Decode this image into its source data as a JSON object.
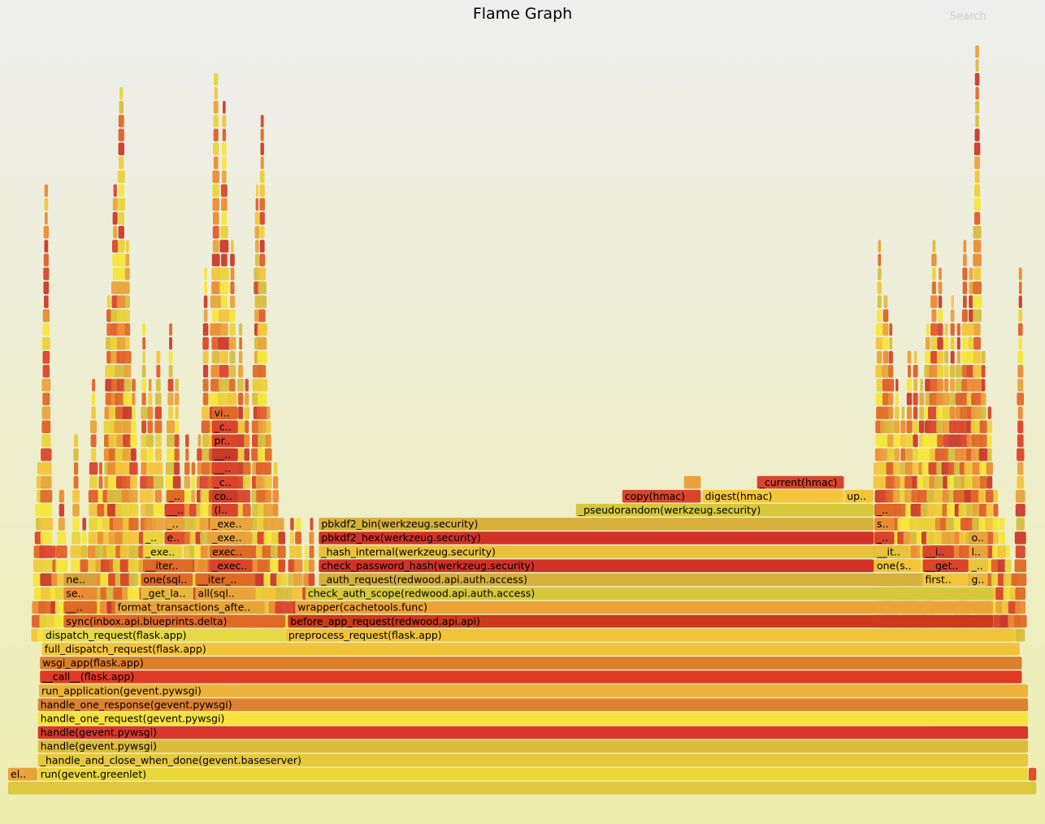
{
  "title": "Flame Graph",
  "search_label": "Search",
  "chart_data": {
    "type": "flamegraph",
    "title": "Flame Graph",
    "palette": [
      "#e8a33a",
      "#de6a25",
      "#d9442b",
      "#f1c53a",
      "#e9d23a",
      "#c93a2a",
      "#eb8b33",
      "#d6be3e",
      "#f5e53a",
      "#e05e2a"
    ],
    "frames": [
      {
        "name": "",
        "depth": 0,
        "start": 0.0,
        "end": 1.0,
        "color": "#ddc840"
      },
      {
        "name": "el..",
        "depth": 1,
        "start": 0.0,
        "end": 0.029,
        "color": "#e8a33a"
      },
      {
        "name": "run(gevent.greenlet)",
        "depth": 1,
        "start": 0.029,
        "end": 0.992,
        "color": "#e9d73a"
      },
      {
        "name": "",
        "depth": 1,
        "start": 0.992,
        "end": 1.0,
        "color": "#e0502b"
      },
      {
        "name": "_handle_and_close_when_done(gevent.baseserver)",
        "depth": 2,
        "start": 0.029,
        "end": 0.992,
        "color": "#e6c83c"
      },
      {
        "name": "handle(gevent.pywsgi)",
        "depth": 3,
        "start": 0.029,
        "end": 0.992,
        "color": "#dcbd3d"
      },
      {
        "name": "handle(gevent.pywsgi)",
        "depth": 4,
        "start": 0.029,
        "end": 0.992,
        "color": "#d8372a"
      },
      {
        "name": "handle_one_request(gevent.pywsgi)",
        "depth": 5,
        "start": 0.029,
        "end": 0.992,
        "color": "#f6e23a"
      },
      {
        "name": "handle_one_response(gevent.pywsgi)",
        "depth": 6,
        "start": 0.029,
        "end": 0.992,
        "color": "#dd8230"
      },
      {
        "name": "run_application(gevent.pywsgi)",
        "depth": 7,
        "start": 0.03,
        "end": 0.992,
        "color": "#edb23a"
      },
      {
        "name": "__call__(flask.app)",
        "depth": 8,
        "start": 0.031,
        "end": 0.986,
        "color": "#de3a25"
      },
      {
        "name": "wsgi_app(flask.app)",
        "depth": 9,
        "start": 0.031,
        "end": 0.986,
        "color": "#dc7e2a"
      },
      {
        "name": "full_dispatch_request(flask.app)",
        "depth": 10,
        "start": 0.033,
        "end": 0.984,
        "color": "#f2c43c"
      },
      {
        "name": "dispatch_request(flask.app)",
        "depth": 11,
        "start": 0.034,
        "end": 0.27,
        "color": "#e5da45"
      },
      {
        "name": "preprocess_request(flask.app)",
        "depth": 11,
        "start": 0.27,
        "end": 0.976,
        "color": "#f0c338"
      },
      {
        "name": "sync(inbox.api.blueprints.delta)",
        "depth": 12,
        "start": 0.054,
        "end": 0.27,
        "color": "#de6a25"
      },
      {
        "name": "before_app_request(redwood.api.api)",
        "depth": 12,
        "start": 0.272,
        "end": 0.958,
        "color": "#cb3a1a"
      },
      {
        "name": "__..",
        "depth": 13,
        "start": 0.054,
        "end": 0.087,
        "color": "#de6a25"
      },
      {
        "name": "format_transactions_afte..",
        "depth": 13,
        "start": 0.104,
        "end": 0.25,
        "color": "#e8a33a"
      },
      {
        "name": "wrapper(cachetools.func)",
        "depth": 13,
        "start": 0.279,
        "end": 0.958,
        "color": "#eba338"
      },
      {
        "name": "se..",
        "depth": 14,
        "start": 0.054,
        "end": 0.087,
        "color": "#eb8b33"
      },
      {
        "name": "_get_la..",
        "depth": 14,
        "start": 0.129,
        "end": 0.18,
        "color": "#e9b83a"
      },
      {
        "name": "all(sql..",
        "depth": 14,
        "start": 0.182,
        "end": 0.24,
        "color": "#e8a33a"
      },
      {
        "name": "check_auth_scope(redwood.api.auth.access)",
        "depth": 14,
        "start": 0.289,
        "end": 0.958,
        "color": "#d6c83a"
      },
      {
        "name": "ne..",
        "depth": 15,
        "start": 0.054,
        "end": 0.087,
        "color": "#d6a03a"
      },
      {
        "name": "one(sql..",
        "depth": 15,
        "start": 0.129,
        "end": 0.18,
        "color": "#de6a25"
      },
      {
        "name": "__iter_..",
        "depth": 15,
        "start": 0.182,
        "end": 0.24,
        "color": "#de6a25"
      },
      {
        "name": "_auth_request(redwood.api.auth.access)",
        "depth": 15,
        "start": 0.302,
        "end": 0.888,
        "color": "#d6b03a"
      },
      {
        "name": "first..",
        "depth": 15,
        "start": 0.889,
        "end": 0.934,
        "color": "#f1c53a"
      },
      {
        "name": "g..",
        "depth": 15,
        "start": 0.934,
        "end": 0.953,
        "color": "#e9b83a"
      },
      {
        "name": "__iter..",
        "depth": 16,
        "start": 0.131,
        "end": 0.18,
        "color": "#de6a25"
      },
      {
        "name": "_exec..",
        "depth": 16,
        "start": 0.196,
        "end": 0.238,
        "color": "#d9442b"
      },
      {
        "name": "check_password_hash(werkzeug.security)",
        "depth": 16,
        "start": 0.302,
        "end": 0.842,
        "color": "#d23128"
      },
      {
        "name": "one(s..",
        "depth": 16,
        "start": 0.842,
        "end": 0.888,
        "color": "#f1c53a"
      },
      {
        "name": "__get..",
        "depth": 16,
        "start": 0.889,
        "end": 0.934,
        "color": "#d9442b"
      },
      {
        "name": "_..",
        "depth": 16,
        "start": 0.934,
        "end": 0.953,
        "color": "#e8c53a"
      },
      {
        "name": "_exe..",
        "depth": 17,
        "start": 0.131,
        "end": 0.17,
        "color": "#e8d43a"
      },
      {
        "name": "exec..",
        "depth": 17,
        "start": 0.196,
        "end": 0.238,
        "color": "#de6a25"
      },
      {
        "name": "_hash_internal(werkzeug.security)",
        "depth": 17,
        "start": 0.302,
        "end": 0.842,
        "color": "#e8c23a"
      },
      {
        "name": "__it..",
        "depth": 17,
        "start": 0.842,
        "end": 0.876,
        "color": "#e8c23a"
      },
      {
        "name": "__i..",
        "depth": 17,
        "start": 0.889,
        "end": 0.92,
        "color": "#d9442b"
      },
      {
        "name": "l..",
        "depth": 17,
        "start": 0.934,
        "end": 0.953,
        "color": "#e8a33a"
      },
      {
        "name": "_..",
        "depth": 18,
        "start": 0.131,
        "end": 0.152,
        "color": "#e8d43a"
      },
      {
        "name": "e..",
        "depth": 18,
        "start": 0.152,
        "end": 0.172,
        "color": "#e0502b"
      },
      {
        "name": "_exe..",
        "depth": 18,
        "start": 0.196,
        "end": 0.238,
        "color": "#e8a33a"
      },
      {
        "name": "pbkdf2_hex(werkzeug.security)",
        "depth": 18,
        "start": 0.302,
        "end": 0.842,
        "color": "#d23128"
      },
      {
        "name": "_..",
        "depth": 18,
        "start": 0.842,
        "end": 0.862,
        "color": "#d9442b"
      },
      {
        "name": "o..",
        "depth": 18,
        "start": 0.934,
        "end": 0.953,
        "color": "#e8a33a"
      },
      {
        "name": "_..",
        "depth": 19,
        "start": 0.152,
        "end": 0.172,
        "color": "#e8a33a"
      },
      {
        "name": "_exe..",
        "depth": 19,
        "start": 0.196,
        "end": 0.238,
        "color": "#e8a33a"
      },
      {
        "name": "pbkdf2_bin(werkzeug.security)",
        "depth": 19,
        "start": 0.302,
        "end": 0.842,
        "color": "#d6b03a"
      },
      {
        "name": "s..",
        "depth": 19,
        "start": 0.842,
        "end": 0.862,
        "color": "#eb8b33"
      },
      {
        "name": "__..",
        "depth": 20,
        "start": 0.152,
        "end": 0.172,
        "color": "#d9442b"
      },
      {
        "name": "(l..",
        "depth": 20,
        "start": 0.198,
        "end": 0.224,
        "color": "#d9442b"
      },
      {
        "name": "_pseudorandom(werkzeug.security)",
        "depth": 20,
        "start": 0.552,
        "end": 0.842,
        "color": "#d6c83a"
      },
      {
        "name": "_..",
        "depth": 20,
        "start": 0.842,
        "end": 0.862,
        "color": "#de6a25"
      },
      {
        "name": "_..",
        "depth": 21,
        "start": 0.154,
        "end": 0.172,
        "color": "#de6a25"
      },
      {
        "name": "co..",
        "depth": 21,
        "start": 0.198,
        "end": 0.224,
        "color": "#c93a2a"
      },
      {
        "name": "copy(hmac)",
        "depth": 21,
        "start": 0.597,
        "end": 0.674,
        "color": "#d9442b"
      },
      {
        "name": "digest(hmac)",
        "depth": 21,
        "start": 0.675,
        "end": 0.813,
        "color": "#f6c63a"
      },
      {
        "name": "up..",
        "depth": 21,
        "start": 0.813,
        "end": 0.842,
        "color": "#f1c53a"
      },
      {
        "name": "_c..",
        "depth": 22,
        "start": 0.198,
        "end": 0.224,
        "color": "#d9442b"
      },
      {
        "name": "",
        "depth": 22,
        "start": 0.657,
        "end": 0.674,
        "color": "#e8a33a"
      },
      {
        "name": "_current(hmac)",
        "depth": 22,
        "start": 0.728,
        "end": 0.813,
        "color": "#d6442b"
      },
      {
        "name": "__..",
        "depth": 23,
        "start": 0.198,
        "end": 0.224,
        "color": "#d9442b"
      },
      {
        "name": "__..",
        "depth": 24,
        "start": 0.198,
        "end": 0.224,
        "color": "#c93a2a"
      },
      {
        "name": "pr..",
        "depth": 25,
        "start": 0.198,
        "end": 0.224,
        "color": "#d9442b"
      },
      {
        "name": "_c..",
        "depth": 26,
        "start": 0.198,
        "end": 0.224,
        "color": "#d9442b"
      },
      {
        "name": "vi..",
        "depth": 27,
        "start": 0.198,
        "end": 0.224,
        "color": "#de6a25"
      }
    ]
  }
}
